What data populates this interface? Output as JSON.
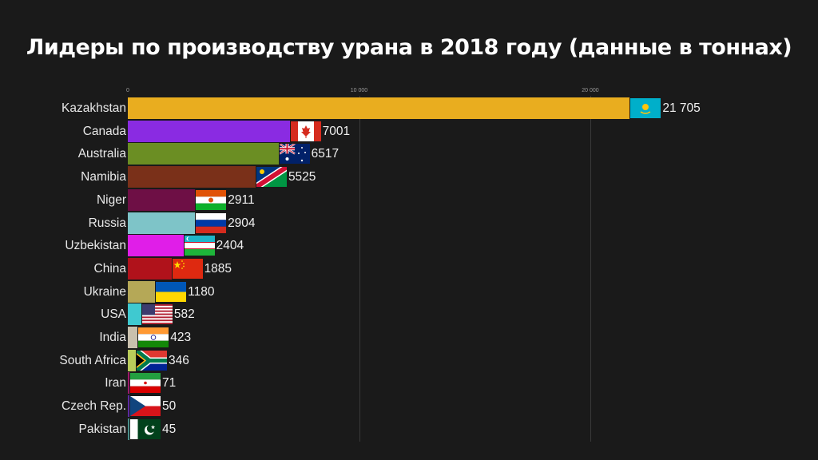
{
  "title": "Лидеры по производству урана в 2018 году (данные в тоннах)",
  "axis": {
    "ticks": [
      {
        "label": "0",
        "value": 0
      },
      {
        "label": "10 000",
        "value": 10000
      },
      {
        "label": "20 000",
        "value": 20000
      }
    ]
  },
  "colors": {
    "background": "#1a1a1a",
    "text": "#e8e8e8",
    "gridline": "#3a3a3a"
  },
  "chart_data": {
    "type": "bar",
    "orientation": "horizontal",
    "title": "Лидеры по производству урана в 2018 году (данные в тоннах)",
    "xlabel": "",
    "ylabel": "",
    "xlim": [
      0,
      22000
    ],
    "grid": true,
    "x_ticks": [
      "0",
      "10 000",
      "20 000"
    ],
    "categories": [
      "Kazakhstan",
      "Canada",
      "Australia",
      "Namibia",
      "Niger",
      "Russia",
      "Uzbekistan",
      "China",
      "Ukraine",
      "USA",
      "India",
      "South Africa",
      "Iran",
      "Czech Rep.",
      "Pakistan"
    ],
    "values": [
      21705,
      7001,
      6517,
      5525,
      2911,
      2904,
      2404,
      1885,
      1180,
      582,
      423,
      346,
      71,
      50,
      45
    ],
    "value_labels": [
      "21 705",
      "7001",
      "6517",
      "5525",
      "2911",
      "2904",
      "2404",
      "1885",
      "1180",
      "582",
      "423",
      "346",
      "71",
      "50",
      "45"
    ],
    "bar_colors": [
      "#e9ad1f",
      "#8a2be2",
      "#6b8e23",
      "#7a3019",
      "#6e0f45",
      "#7ec4c8",
      "#e01ee8",
      "#b0121b",
      "#b5a857",
      "#3fc9d0",
      "#c9c0ad",
      "#b9cc5a",
      "#9c1a6a",
      "#5a2aa0",
      "#4a8f8a"
    ],
    "flags": [
      "kazakhstan",
      "canada",
      "australia",
      "namibia",
      "niger",
      "russia",
      "uzbekistan",
      "china",
      "ukraine",
      "usa",
      "india",
      "south-africa",
      "iran",
      "czech",
      "pakistan"
    ]
  }
}
